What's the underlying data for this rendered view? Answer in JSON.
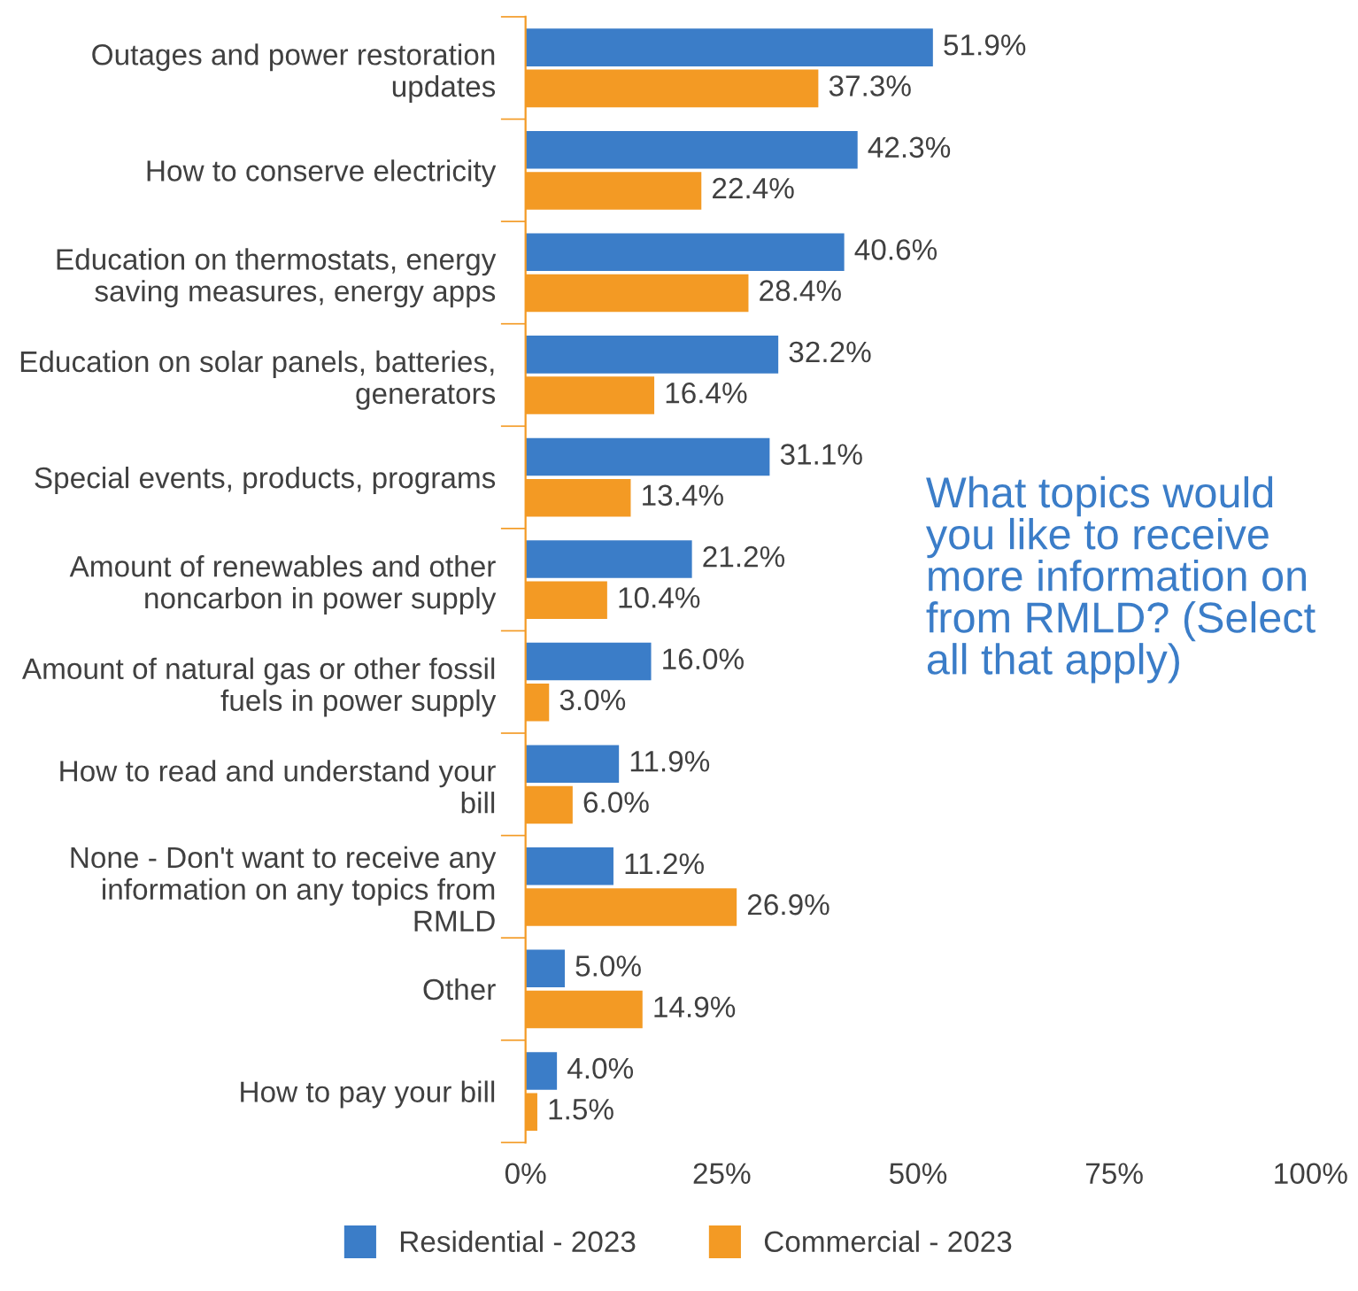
{
  "chart_data": {
    "type": "bar",
    "orientation": "horizontal",
    "categories": [
      "Outages and power restoration\nupdates",
      "How to conserve electricity",
      "Education on thermostats, energy\nsaving measures, energy apps",
      "Education on solar panels, batteries,\ngenerators",
      "Special events, products, programs",
      "Amount of renewables and other\nnoncarbon in power supply",
      "Amount of natural gas or other fossil\nfuels in power supply",
      "How to read and understand your\nbill",
      "None - Don't want to receive any\ninformation on any topics from\nRMLD",
      "Other",
      "How to pay your bill"
    ],
    "series": [
      {
        "name": "Residential - 2023",
        "color": "#3b7dc8",
        "values": [
          51.9,
          42.3,
          40.6,
          32.2,
          31.1,
          21.2,
          16.0,
          11.9,
          11.2,
          5.0,
          4.0
        ],
        "value_labels": [
          "51.9%",
          "42.3%",
          "40.6%",
          "32.2%",
          "31.1%",
          "21.2%",
          "16.0%",
          "11.9%",
          "11.2%",
          "5.0%",
          "4.0%"
        ]
      },
      {
        "name": "Commercial - 2023",
        "color": "#f39a24",
        "values": [
          37.3,
          22.4,
          28.4,
          16.4,
          13.4,
          10.4,
          3.0,
          6.0,
          26.9,
          14.9,
          1.5
        ],
        "value_labels": [
          "37.3%",
          "22.4%",
          "28.4%",
          "16.4%",
          "13.4%",
          "10.4%",
          "3.0%",
          "6.0%",
          "26.9%",
          "14.9%",
          "1.5%"
        ]
      }
    ],
    "xlim": [
      0,
      100
    ],
    "xticks": [
      {
        "value": 0,
        "label": "0%"
      },
      {
        "value": 25,
        "label": "25%"
      },
      {
        "value": 50,
        "label": "50%"
      },
      {
        "value": 75,
        "label": "75%"
      },
      {
        "value": 100,
        "label": "100%"
      }
    ],
    "grid": false,
    "legend": "bottom",
    "annotations": [
      "What topics would\nyou like to receive\nmore information on\nfrom RMLD? (Select\nall that apply)"
    ]
  }
}
